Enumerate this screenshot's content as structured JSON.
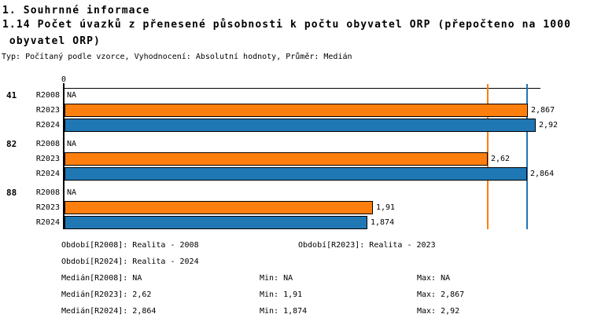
{
  "header": {
    "title": "1. Souhrnné informace",
    "subtitle_line1": "1.14 Počet úvazků z přenesené působnosti k počtu obyvatel ORP (přepočteno na 1000",
    "subtitle_line2": " obyvatel ORP)",
    "meta": "Typ: Počítaný podle vzorce, Vyhodnocení: Absolutní hodnoty, Průměr: Medián"
  },
  "chart_data": {
    "type": "bar",
    "orientation": "horizontal",
    "axis_zero_label": "0",
    "xlim": [
      0,
      2.95
    ],
    "groups": [
      "41",
      "82",
      "88"
    ],
    "series": [
      {
        "name": "R2008",
        "color": null,
        "values": [
          null,
          null,
          null
        ],
        "display": [
          "NA",
          "NA",
          "NA"
        ]
      },
      {
        "name": "R2023",
        "color": "#FF7F0E",
        "values": [
          2.867,
          2.62,
          1.91
        ],
        "display": [
          "2,867",
          "2,62",
          "1,91"
        ]
      },
      {
        "name": "R2024",
        "color": "#1F77B4",
        "values": [
          2.92,
          2.864,
          1.874
        ],
        "display": [
          "2,92",
          "2,864",
          "1,874"
        ]
      }
    ],
    "reference_lines": [
      {
        "name": "median-r2023",
        "value": 2.62,
        "color": "#FF7F0E"
      },
      {
        "name": "median-r2024",
        "value": 2.864,
        "color": "#1F77B4"
      }
    ]
  },
  "legend": {
    "period_r2008": "Období[R2008]: Realita - 2008",
    "period_r2023": "Období[R2023]: Realita - 2023",
    "period_r2024": "Období[R2024]: Realita - 2024"
  },
  "stats": {
    "r2008": {
      "median": "Medián[R2008]: NA",
      "min": "Min: NA",
      "max": "Max: NA"
    },
    "r2023": {
      "median": "Medián[R2023]: 2,62",
      "min": "Min: 1,91",
      "max": "Max: 2,867"
    },
    "r2024": {
      "median": "Medián[R2024]: 2,864",
      "min": "Min: 1,874",
      "max": "Max: 2,92"
    }
  }
}
